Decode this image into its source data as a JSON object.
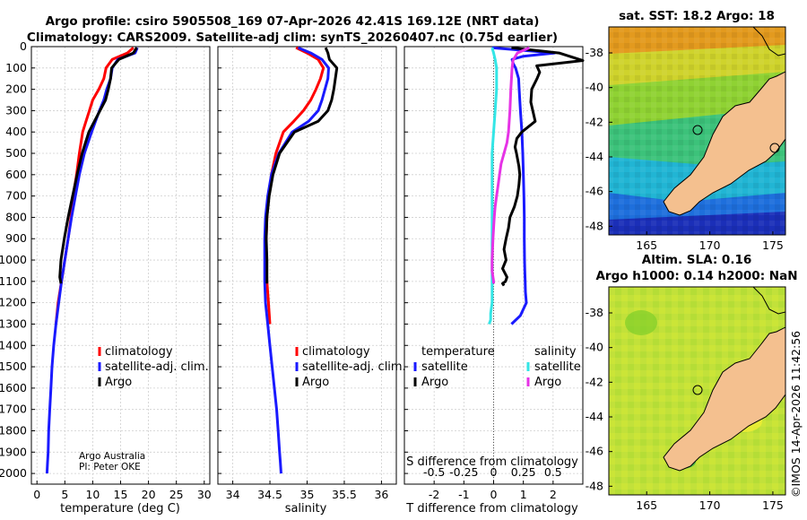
{
  "header": {
    "title_line1": "Argo profile: csiro 5905508_169 07-Apr-2026 42.41S 169.12E (NRT data)",
    "title_line2": "Climatology: CARS2009. Satellite-adj clim: synTS_20260407.nc (0.75d earlier)"
  },
  "colors": {
    "climatology": "#ff0000",
    "satellite": "#1a1aff",
    "argo": "#000000",
    "cyan": "#33e6e6",
    "magenta": "#e633e6"
  },
  "chart_data": [
    {
      "type": "line",
      "id": "temperature",
      "xlabel": "temperature (deg C)",
      "ylabel": "depth",
      "xlim": [
        -1,
        31
      ],
      "ylim": [
        0,
        2050
      ],
      "xticks": [
        0,
        5,
        10,
        15,
        20,
        25,
        30
      ],
      "xtick_labels": [
        "0",
        "5",
        "10",
        "15",
        "20",
        "25",
        "30"
      ],
      "yticks": [
        0,
        100,
        200,
        300,
        400,
        500,
        600,
        700,
        800,
        900,
        1000,
        1100,
        1200,
        1300,
        1400,
        1500,
        1600,
        1700,
        1800,
        1900,
        2000
      ],
      "ytick_labels": [
        "0",
        "100",
        "200",
        "300",
        "400",
        "500",
        "600",
        "700",
        "800",
        "900",
        "1000",
        "1100",
        "1200",
        "1300",
        "1400",
        "1500",
        "1600",
        "1700",
        "1800",
        "1900",
        "2000"
      ],
      "series": [
        {
          "name": "climatology",
          "color_key": "climatology",
          "x": [
            17.3,
            16.2,
            13.5,
            12.4,
            12.0,
            11.1,
            10.0,
            9.4,
            8.8,
            8.2,
            7.6,
            7.1,
            6.5,
            6.1,
            5.6,
            5.0,
            4.4,
            3.8,
            3.4
          ],
          "y": [
            5,
            30,
            60,
            100,
            150,
            200,
            250,
            300,
            350,
            400,
            500,
            600,
            700,
            800,
            900,
            1000,
            1100,
            1200,
            1300
          ]
        },
        {
          "name": "satellite-adj. clim.",
          "color_key": "satellite",
          "x": [
            18.0,
            17.6,
            14.5,
            13.5,
            13.2,
            12.5,
            12.0,
            11.2,
            10.5,
            9.8,
            8.5,
            7.6,
            6.9,
            6.2,
            5.6,
            5.0,
            4.4,
            3.9,
            3.4,
            3.0,
            2.7,
            2.5,
            2.3,
            2.1,
            2.0,
            1.9,
            1.8
          ],
          "y": [
            5,
            30,
            60,
            100,
            150,
            200,
            250,
            300,
            350,
            400,
            500,
            600,
            700,
            800,
            900,
            1000,
            1100,
            1200,
            1300,
            1400,
            1500,
            1600,
            1700,
            1800,
            1900,
            1950,
            2000
          ]
        },
        {
          "name": "Argo",
          "color_key": "argo",
          "x": [
            17.9,
            17.3,
            14.7,
            13.4,
            13.2,
            12.8,
            12.3,
            11.3,
            10.3,
            9.3,
            8.1,
            7.2,
            6.4,
            5.6,
            4.9,
            4.3,
            4.1,
            4.3
          ],
          "y": [
            5,
            30,
            60,
            100,
            150,
            200,
            250,
            300,
            350,
            400,
            500,
            600,
            700,
            800,
            900,
            1000,
            1080,
            1110
          ]
        }
      ],
      "legend": {
        "placement": "lower-right",
        "entries": [
          "climatology",
          "satellite-adj. clim.",
          "Argo"
        ]
      },
      "annotations": [
        "Argo Australia",
        "PI: Peter OKE"
      ]
    },
    {
      "type": "line",
      "id": "salinity",
      "xlabel": "salinity",
      "ylabel": "depth",
      "xlim": [
        33.8,
        36.2
      ],
      "ylim": [
        0,
        2050
      ],
      "xticks": [
        34,
        34.5,
        35,
        35.5,
        36
      ],
      "xtick_labels": [
        "34",
        "34.5",
        "35",
        "35.5",
        "36"
      ],
      "series": [
        {
          "name": "climatology",
          "color_key": "climatology",
          "x": [
            34.85,
            35.0,
            35.15,
            35.22,
            35.18,
            35.12,
            35.05,
            34.95,
            34.82,
            34.68,
            34.58,
            34.52,
            34.48,
            34.46,
            34.45,
            34.45,
            34.46,
            34.48,
            34.5
          ],
          "y": [
            5,
            30,
            60,
            100,
            150,
            200,
            250,
            300,
            350,
            400,
            500,
            600,
            700,
            800,
            900,
            1000,
            1100,
            1200,
            1300
          ]
        },
        {
          "name": "satellite-adj. clim.",
          "color_key": "satellite",
          "x": [
            34.88,
            35.05,
            35.2,
            35.29,
            35.28,
            35.24,
            35.2,
            35.15,
            35.02,
            34.8,
            34.62,
            34.52,
            34.47,
            34.44,
            34.43,
            34.43,
            34.43,
            34.44,
            34.47,
            34.5,
            34.53,
            34.56,
            34.59,
            34.61,
            34.63,
            34.64,
            34.65
          ],
          "y": [
            5,
            30,
            60,
            100,
            150,
            200,
            250,
            300,
            350,
            400,
            500,
            600,
            700,
            800,
            900,
            1000,
            1100,
            1200,
            1300,
            1400,
            1500,
            1600,
            1700,
            1800,
            1900,
            1950,
            2000
          ]
        },
        {
          "name": "Argo",
          "color_key": "argo",
          "x": [
            35.25,
            35.28,
            35.3,
            35.4,
            35.38,
            35.36,
            35.33,
            35.28,
            35.15,
            34.83,
            34.63,
            34.54,
            34.49,
            34.46,
            34.45,
            34.46,
            34.46
          ],
          "y": [
            5,
            30,
            60,
            100,
            150,
            200,
            250,
            300,
            350,
            400,
            500,
            600,
            700,
            800,
            900,
            1000,
            1110
          ]
        }
      ],
      "legend": {
        "placement": "lower-right",
        "entries": [
          "climatology",
          "satellite-adj. clim.",
          "Argo"
        ]
      }
    },
    {
      "type": "line",
      "id": "difference",
      "xlabel": "T difference from climatology",
      "x2label": "S difference from climatology",
      "ylabel": "depth",
      "xlim": [
        -3,
        3
      ],
      "ylim": [
        0,
        2050
      ],
      "xticks": [
        -2,
        -1,
        0,
        1,
        2
      ],
      "xtick_labels": [
        "-2",
        "-1",
        "0",
        "1",
        "2"
      ],
      "x2tick_labels": [
        "-0.5",
        "-0.25",
        "0",
        "0.25",
        "0.5"
      ],
      "series": [
        {
          "name": "temperature satellite",
          "group": "temperature",
          "color_key": "satellite",
          "x": [
            -0.05,
            2.05,
            1.0,
            0.62,
            0.66,
            0.74,
            0.84,
            0.86,
            0.9,
            0.95,
            0.98,
            1.0,
            1.02,
            1.03,
            1.03,
            1.04,
            1.05,
            1.06,
            1.07,
            1.1,
            1.0,
            0.9,
            0.6
          ],
          "y": [
            5,
            30,
            45,
            60,
            80,
            100,
            150,
            200,
            300,
            400,
            500,
            600,
            700,
            800,
            900,
            1000,
            1050,
            1100,
            1150,
            1200,
            1230,
            1260,
            1300
          ]
        },
        {
          "name": "temperature Argo",
          "group": "temperature",
          "color_key": "argo",
          "x": [
            0.6,
            2.2,
            3.0,
            1.45,
            1.55,
            1.46,
            1.28,
            1.25,
            1.4,
            0.95,
            0.78,
            0.72,
            0.77,
            0.85,
            0.88,
            0.85,
            0.8,
            0.7,
            0.55,
            0.5,
            0.42,
            0.35,
            0.42,
            0.3,
            0.45,
            0.4,
            0.3,
            0.35
          ],
          "y": [
            5,
            30,
            65,
            90,
            120,
            150,
            200,
            260,
            350,
            400,
            430,
            470,
            500,
            560,
            600,
            650,
            700,
            750,
            800,
            850,
            900,
            950,
            1000,
            1040,
            1080,
            1100,
            1110,
            1120
          ]
        },
        {
          "name": "salinity satellite",
          "group": "salinity",
          "color_key": "cyan",
          "x": [
            -0.05,
            0,
            0.05,
            0.1,
            0.1,
            0.05,
            0.0,
            -0.05,
            -0.05,
            -0.05,
            -0.05,
            -0.05,
            -0.05,
            -0.05,
            -0.05,
            -0.05,
            -0.05,
            -0.1,
            -0.1,
            -0.15
          ],
          "y": [
            5,
            30,
            60,
            100,
            200,
            300,
            400,
            500,
            600,
            700,
            800,
            900,
            1000,
            1050,
            1100,
            1150,
            1200,
            1250,
            1280,
            1300
          ]
        },
        {
          "name": "salinity Argo",
          "group": "salinity",
          "color_key": "magenta",
          "x": [
            1.2,
            0.8,
            0.65,
            0.62,
            0.6,
            0.58,
            0.55,
            0.5,
            0.45,
            0.35,
            0.25,
            0.2,
            0.15,
            0.1,
            0.05,
            0.02,
            -0.02,
            -0.05,
            -0.05,
            0.0,
            0.0
          ],
          "y": [
            5,
            30,
            65,
            100,
            150,
            200,
            300,
            400,
            450,
            500,
            550,
            600,
            650,
            700,
            750,
            800,
            900,
            1000,
            1050,
            1100,
            1110
          ]
        }
      ],
      "legend": {
        "placement": "lower-center",
        "left_heading": "temperature",
        "right_heading": "salinity",
        "left_entries": [
          "satellite",
          "Argo"
        ],
        "right_entries": [
          "satellite",
          "Argo"
        ]
      }
    },
    {
      "type": "heatmap",
      "id": "sst-map",
      "title": "sat. SST: 18.2 Argo: 18",
      "xlim": [
        162,
        176
      ],
      "ylim": [
        -48.5,
        -36.5
      ],
      "xtick_labels": [
        "165",
        "170",
        "175"
      ],
      "ytick_labels": [
        "-38",
        "-40",
        "-42",
        "-44",
        "-46",
        "-48"
      ],
      "xticks": [
        165,
        170,
        175
      ],
      "yticks": [
        -38,
        -40,
        -42,
        -44,
        -46,
        -48
      ],
      "argo_position": [
        169.12,
        -42.41
      ]
    },
    {
      "type": "heatmap",
      "id": "sla-map",
      "title_line1": "Altim. SLA: 0.16",
      "title_line2": "Argo h1000: 0.14 h2000: NaN",
      "xlim": [
        162,
        176
      ],
      "ylim": [
        -48.5,
        -36.5
      ],
      "xtick_labels": [
        "165",
        "170",
        "175"
      ],
      "ytick_labels": [
        "-38",
        "-40",
        "-42",
        "-44",
        "-46",
        "-48"
      ],
      "xticks": [
        165,
        170,
        175
      ],
      "yticks": [
        -38,
        -40,
        -42,
        -44,
        -46,
        -48
      ],
      "argo_position": [
        169.12,
        -42.41
      ]
    }
  ],
  "side_stamp": "©IMOS 14-Apr-2026 11:42:56"
}
